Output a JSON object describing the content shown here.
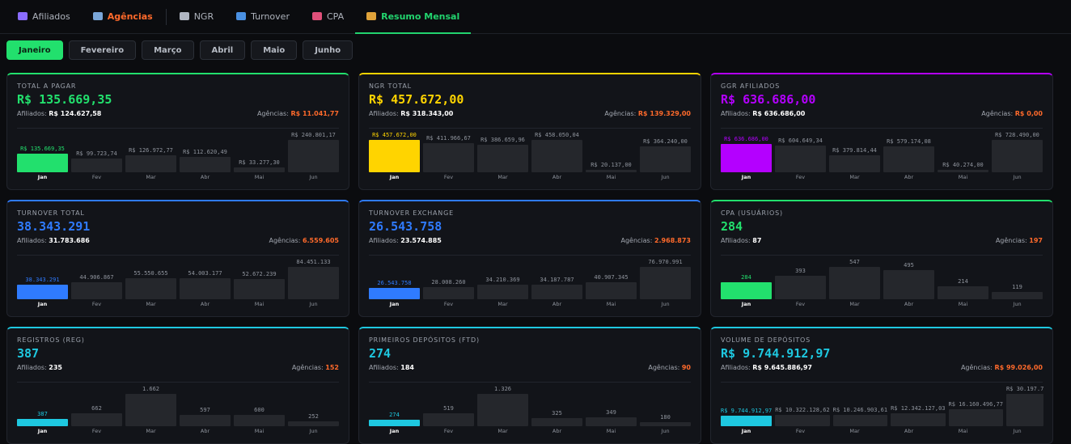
{
  "nav": {
    "tabs": [
      {
        "label": "Afiliados",
        "icon": "users-icon",
        "icon_color": "#8a6cff"
      },
      {
        "label": "Agências",
        "icon": "building-icon",
        "icon_color": "#7aa6d8"
      },
      {
        "label": "NGR",
        "icon": "chart-icon",
        "icon_color": "#b0b6c2"
      },
      {
        "label": "Turnover",
        "icon": "refresh-icon",
        "icon_color": "#4a90e2"
      },
      {
        "label": "CPA",
        "icon": "target-icon",
        "icon_color": "#e0507a"
      },
      {
        "label": "Resumo Mensal",
        "icon": "bar-chart-icon",
        "icon_color": "#e0a33a"
      }
    ]
  },
  "months": [
    "Janeiro",
    "Fevereiro",
    "Março",
    "Abril",
    "Maio",
    "Junho"
  ],
  "x_labels": [
    "Jan",
    "Fev",
    "Mar",
    "Abr",
    "Mai",
    "Jun"
  ],
  "cards": [
    {
      "title": "TOTAL A PAGAR",
      "value": "R$ 135.669,35",
      "color": "#22e06d",
      "afiliados_label": "Afiliados:",
      "afiliados": "R$ 124.627,58",
      "agencias_label": "Agências:",
      "agencias": "R$ 11.041,77",
      "bars": [
        {
          "label": "R$ 135.669,35",
          "value": 135669.35
        },
        {
          "label": "R$ 99.723,74",
          "value": 99723.74
        },
        {
          "label": "R$ 126.972,77",
          "value": 126972.77
        },
        {
          "label": "R$ 112.620,49",
          "value": 112620.49
        },
        {
          "label": "R$ 33.277,30",
          "value": 33277.3
        },
        {
          "label": "R$ 240.801,17",
          "value": 240801.17
        }
      ]
    },
    {
      "title": "NGR TOTAL",
      "value": "R$ 457.672,00",
      "color": "#ffd400",
      "afiliados_label": "Afiliados:",
      "afiliados": "R$ 318.343,00",
      "agencias_label": "Agências:",
      "agencias": "R$ 139.329,00",
      "bars": [
        {
          "label": "R$ 457.672,00",
          "value": 457672
        },
        {
          "label": "R$ 411.966,67",
          "value": 411966.67
        },
        {
          "label": "R$ 386.659,96",
          "value": 386659.96
        },
        {
          "label": "R$ 458.050,04",
          "value": 458050.04
        },
        {
          "label": "R$ 20.137,00",
          "value": 20137
        },
        {
          "label": "R$ 364.240,00",
          "value": 364240
        }
      ]
    },
    {
      "title": "GGR AFILIADOS",
      "value": "R$ 636.686,00",
      "color": "#b400ff",
      "afiliados_label": "Afiliados:",
      "afiliados": "R$ 636.686,00",
      "agencias_label": "Agências:",
      "agencias": "R$ 0,00",
      "bars": [
        {
          "label": "R$ 636.686,00",
          "value": 636686
        },
        {
          "label": "R$ 604.649,34",
          "value": 604649.34
        },
        {
          "label": "R$ 379.814,44",
          "value": 379814.44
        },
        {
          "label": "R$ 579.174,08",
          "value": 579174.08
        },
        {
          "label": "R$ 40.274,00",
          "value": 40274
        },
        {
          "label": "R$ 728.490,00",
          "value": 728490
        }
      ]
    },
    {
      "title": "TURNOVER TOTAL",
      "value": "38.343.291",
      "color": "#2f7bff",
      "afiliados_label": "Afiliados:",
      "afiliados": "31.783.686",
      "agencias_label": "Agências:",
      "agencias": "6.559.605",
      "bars": [
        {
          "label": "38.343.291",
          "value": 38343291
        },
        {
          "label": "44.906.867",
          "value": 44906867
        },
        {
          "label": "55.550.655",
          "value": 55550655
        },
        {
          "label": "54.003.177",
          "value": 54003177
        },
        {
          "label": "52.672.239",
          "value": 52672239
        },
        {
          "label": "84.451.133",
          "value": 84451133
        }
      ]
    },
    {
      "title": "TURNOVER EXCHANGE",
      "value": "26.543.758",
      "color": "#2f7bff",
      "afiliados_label": "Afiliados:",
      "afiliados": "23.574.885",
      "agencias_label": "Agências:",
      "agencias": "2.968.873",
      "bars": [
        {
          "label": "26.543.758",
          "value": 26543758
        },
        {
          "label": "28.008.260",
          "value": 28008260
        },
        {
          "label": "34.210.369",
          "value": 34210369
        },
        {
          "label": "34.187.787",
          "value": 34187787
        },
        {
          "label": "40.907.345",
          "value": 40907345
        },
        {
          "label": "76.970.991",
          "value": 76970991
        }
      ]
    },
    {
      "title": "CPA (USUÁRIOS)",
      "value": "284",
      "color": "#22e06d",
      "afiliados_label": "Afiliados:",
      "afiliados": "87",
      "agencias_label": "Agências:",
      "agencias": "197",
      "bars": [
        {
          "label": "284",
          "value": 284
        },
        {
          "label": "393",
          "value": 393
        },
        {
          "label": "547",
          "value": 547
        },
        {
          "label": "495",
          "value": 495
        },
        {
          "label": "214",
          "value": 214
        },
        {
          "label": "119",
          "value": 119
        }
      ]
    },
    {
      "title": "REGISTROS (REG)",
      "value": "387",
      "color": "#1ec8e0",
      "afiliados_label": "Afiliados:",
      "afiliados": "235",
      "agencias_label": "Agências:",
      "agencias": "152",
      "bars": [
        {
          "label": "387",
          "value": 387
        },
        {
          "label": "662",
          "value": 662
        },
        {
          "label": "1.662",
          "value": 1662
        },
        {
          "label": "597",
          "value": 597
        },
        {
          "label": "600",
          "value": 600
        },
        {
          "label": "252",
          "value": 252
        }
      ]
    },
    {
      "title": "PRIMEIROS DEPÓSITOS (FTD)",
      "value": "274",
      "color": "#1ec8e0",
      "afiliados_label": "Afiliados:",
      "afiliados": "184",
      "agencias_label": "Agências:",
      "agencias": "90",
      "bars": [
        {
          "label": "274",
          "value": 274
        },
        {
          "label": "519",
          "value": 519
        },
        {
          "label": "1.326",
          "value": 1326
        },
        {
          "label": "325",
          "value": 325
        },
        {
          "label": "349",
          "value": 349
        },
        {
          "label": "180",
          "value": 180
        }
      ]
    },
    {
      "title": "VOLUME DE DEPÓSITOS",
      "value": "R$ 9.744.912,97",
      "color": "#1ec8e0",
      "afiliados_label": "Afiliados:",
      "afiliados": "R$ 9.645.886,97",
      "agencias_label": "Agências:",
      "agencias": "R$ 99.026,00",
      "bars": [
        {
          "label": "R$ 9.744.912,97",
          "value": 9744912.97
        },
        {
          "label": "R$ 10.322.128,62",
          "value": 10322128.62
        },
        {
          "label": "R$ 10.246.903,61",
          "value": 10246903.61
        },
        {
          "label": "R$ 12.342.127,03",
          "value": 12342127.03
        },
        {
          "label": "R$ 16.160.496,77",
          "value": 16160496.77
        },
        {
          "label": "R$ 30.197.7",
          "value": 30197700
        }
      ]
    }
  ]
}
